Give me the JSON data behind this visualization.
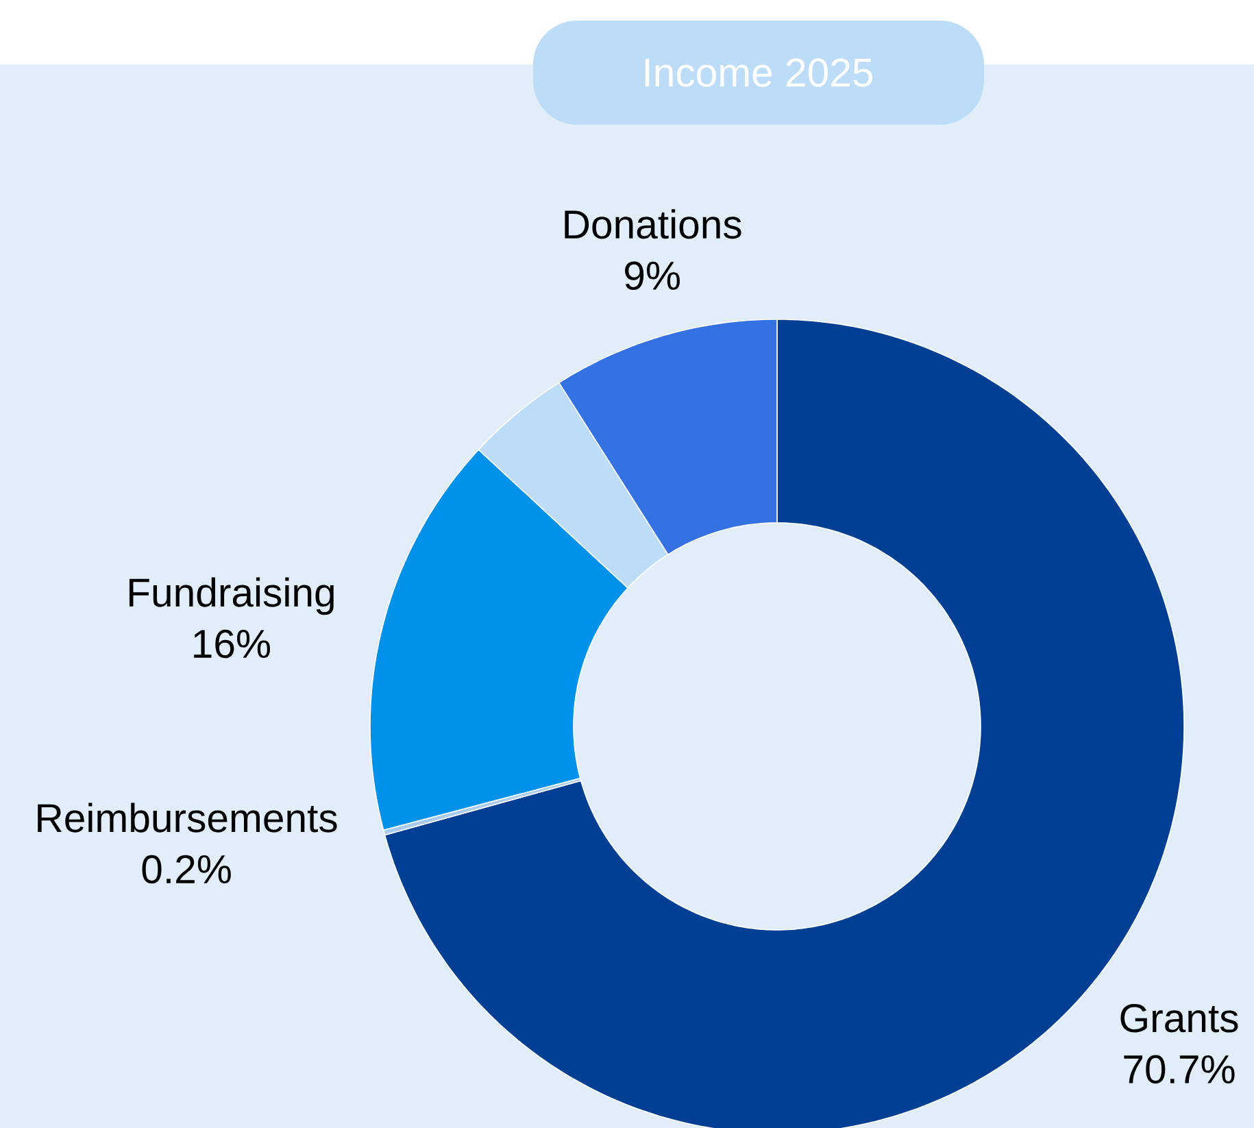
{
  "chart_data": {
    "type": "donut",
    "title": "Income 2025",
    "categories": [
      "Grants",
      "Reimbursements",
      "Fundraising",
      null,
      "Donations"
    ],
    "values": [
      70.7,
      0.2,
      16,
      4.1,
      9
    ],
    "value_labels": [
      "70.7%",
      "0.2%",
      "16%",
      null,
      "9%"
    ],
    "colors": [
      "#003f94",
      "#a9cbef",
      "#0091ea",
      "#bddcf7",
      "#3471e3"
    ]
  }
}
